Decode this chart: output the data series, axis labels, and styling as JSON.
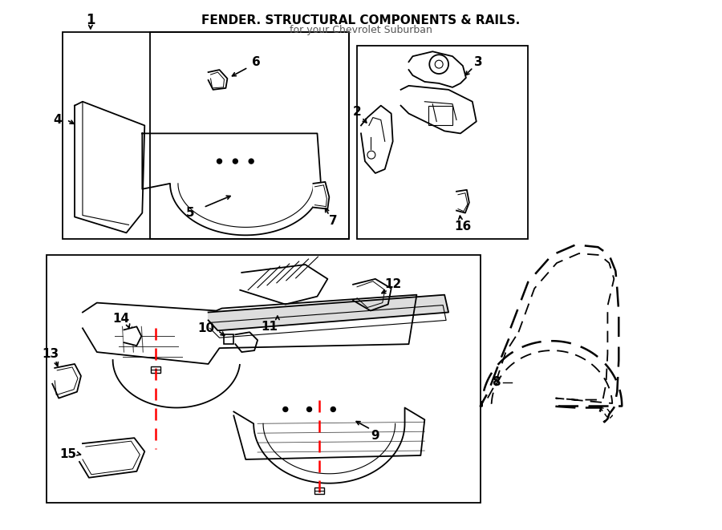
{
  "title": "FENDER. STRUCTURAL COMPONENTS & RAILS.",
  "subtitle": "for your Chevrolet Suburban",
  "bg_color": "#ffffff",
  "line_color": "#000000",
  "red_dash_color": "#ff0000",
  "figsize": [
    9.0,
    6.61
  ],
  "dpi": 100
}
